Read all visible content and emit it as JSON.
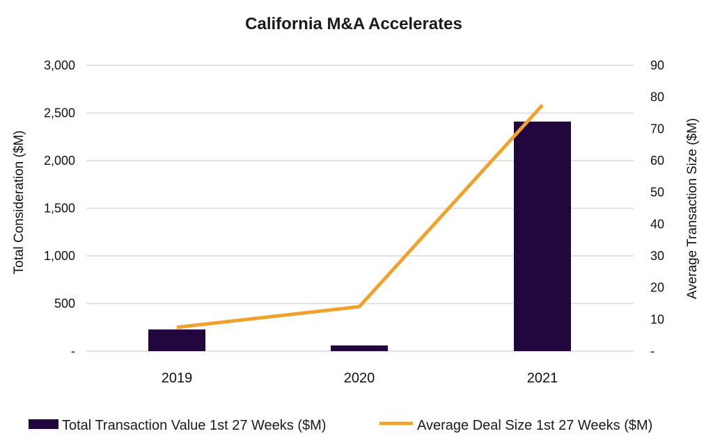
{
  "chart_data": {
    "type": "bar+line",
    "title": "California M&A Accelerates",
    "categories": [
      "2019",
      "2020",
      "2021"
    ],
    "series": [
      {
        "name": "Total Transaction Value 1st 27 Weeks ($M)",
        "type": "bar",
        "axis": "left",
        "color": "#22063e",
        "values": [
          228,
          60,
          2410
        ]
      },
      {
        "name": "Average Deal Size 1st 27 Weeks ($M)",
        "type": "line",
        "axis": "right",
        "color": "#f0a22c",
        "values": [
          7.5,
          14,
          77.5
        ]
      }
    ],
    "left_axis": {
      "label": "Total Consideration ($M)",
      "range": [
        0,
        3000
      ],
      "ticks": [
        0,
        500,
        1000,
        1500,
        2000,
        2500,
        3000
      ],
      "tick_labels": [
        "-",
        "500",
        "1,000",
        "1,500",
        "2,000",
        "2,500",
        "3,000"
      ]
    },
    "right_axis": {
      "label": "Average Transaction Size ($M)",
      "range": [
        0,
        90
      ],
      "ticks": [
        0,
        10,
        20,
        30,
        40,
        50,
        60,
        70,
        80,
        90
      ],
      "tick_labels": [
        "-",
        "10",
        "20",
        "30",
        "40",
        "50",
        "60",
        "70",
        "80",
        "90"
      ]
    },
    "grid": true,
    "legend_position": "bottom"
  }
}
